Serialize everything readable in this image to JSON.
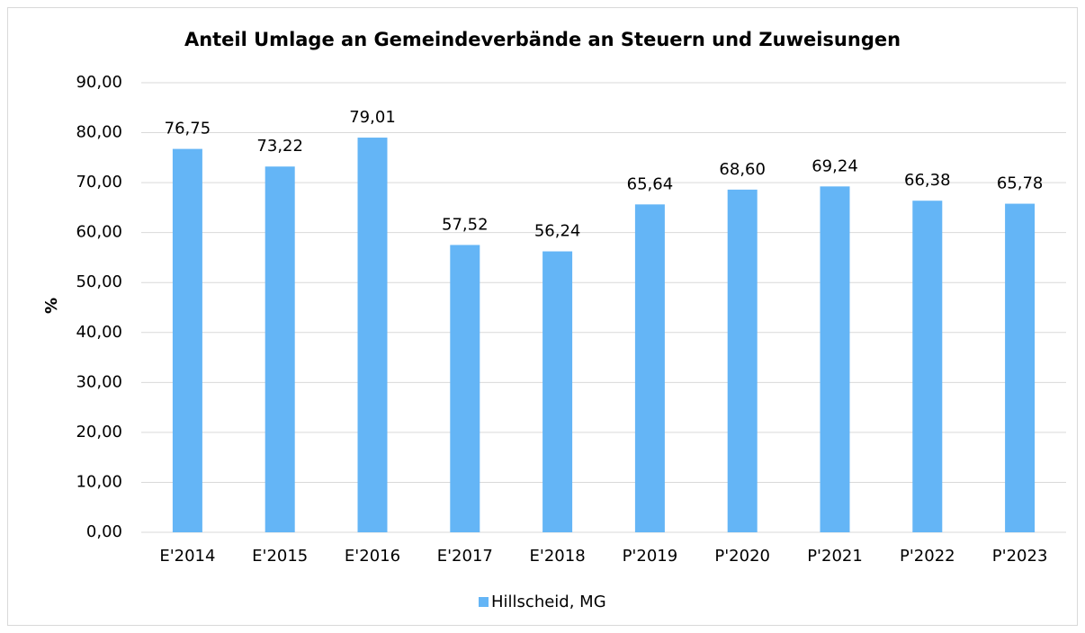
{
  "chart_data": {
    "type": "bar",
    "title": "Anteil Umlage an Gemeindeverbände an Steuern und Zuweisungen",
    "y_label": "%",
    "categories": [
      "E'2014",
      "E'2015",
      "E'2016",
      "E'2017",
      "E'2018",
      "P'2019",
      "P'2020",
      "P'2021",
      "P'2022",
      "P'2023"
    ],
    "series": [
      {
        "name": "Hillscheid, MG",
        "color": "#64b5f6",
        "values": [
          76.75,
          73.22,
          79.01,
          57.52,
          56.24,
          65.64,
          68.6,
          69.24,
          66.38,
          65.78
        ],
        "value_labels": [
          "76,75",
          "73,22",
          "79,01",
          "57,52",
          "56,24",
          "65,64",
          "68,60",
          "69,24",
          "66,38",
          "65,78"
        ]
      }
    ],
    "ylim": [
      0,
      90
    ],
    "yticks": [
      {
        "value": 0,
        "label": "0,00"
      },
      {
        "value": 10,
        "label": "10,00"
      },
      {
        "value": 20,
        "label": "20,00"
      },
      {
        "value": 30,
        "label": "30,00"
      },
      {
        "value": 40,
        "label": "40,00"
      },
      {
        "value": 50,
        "label": "50,00"
      },
      {
        "value": 60,
        "label": "60,00"
      },
      {
        "value": 70,
        "label": "70,00"
      },
      {
        "value": 80,
        "label": "80,00"
      },
      {
        "value": 90,
        "label": "90,00"
      }
    ],
    "grid": true,
    "legend": "bottom"
  }
}
